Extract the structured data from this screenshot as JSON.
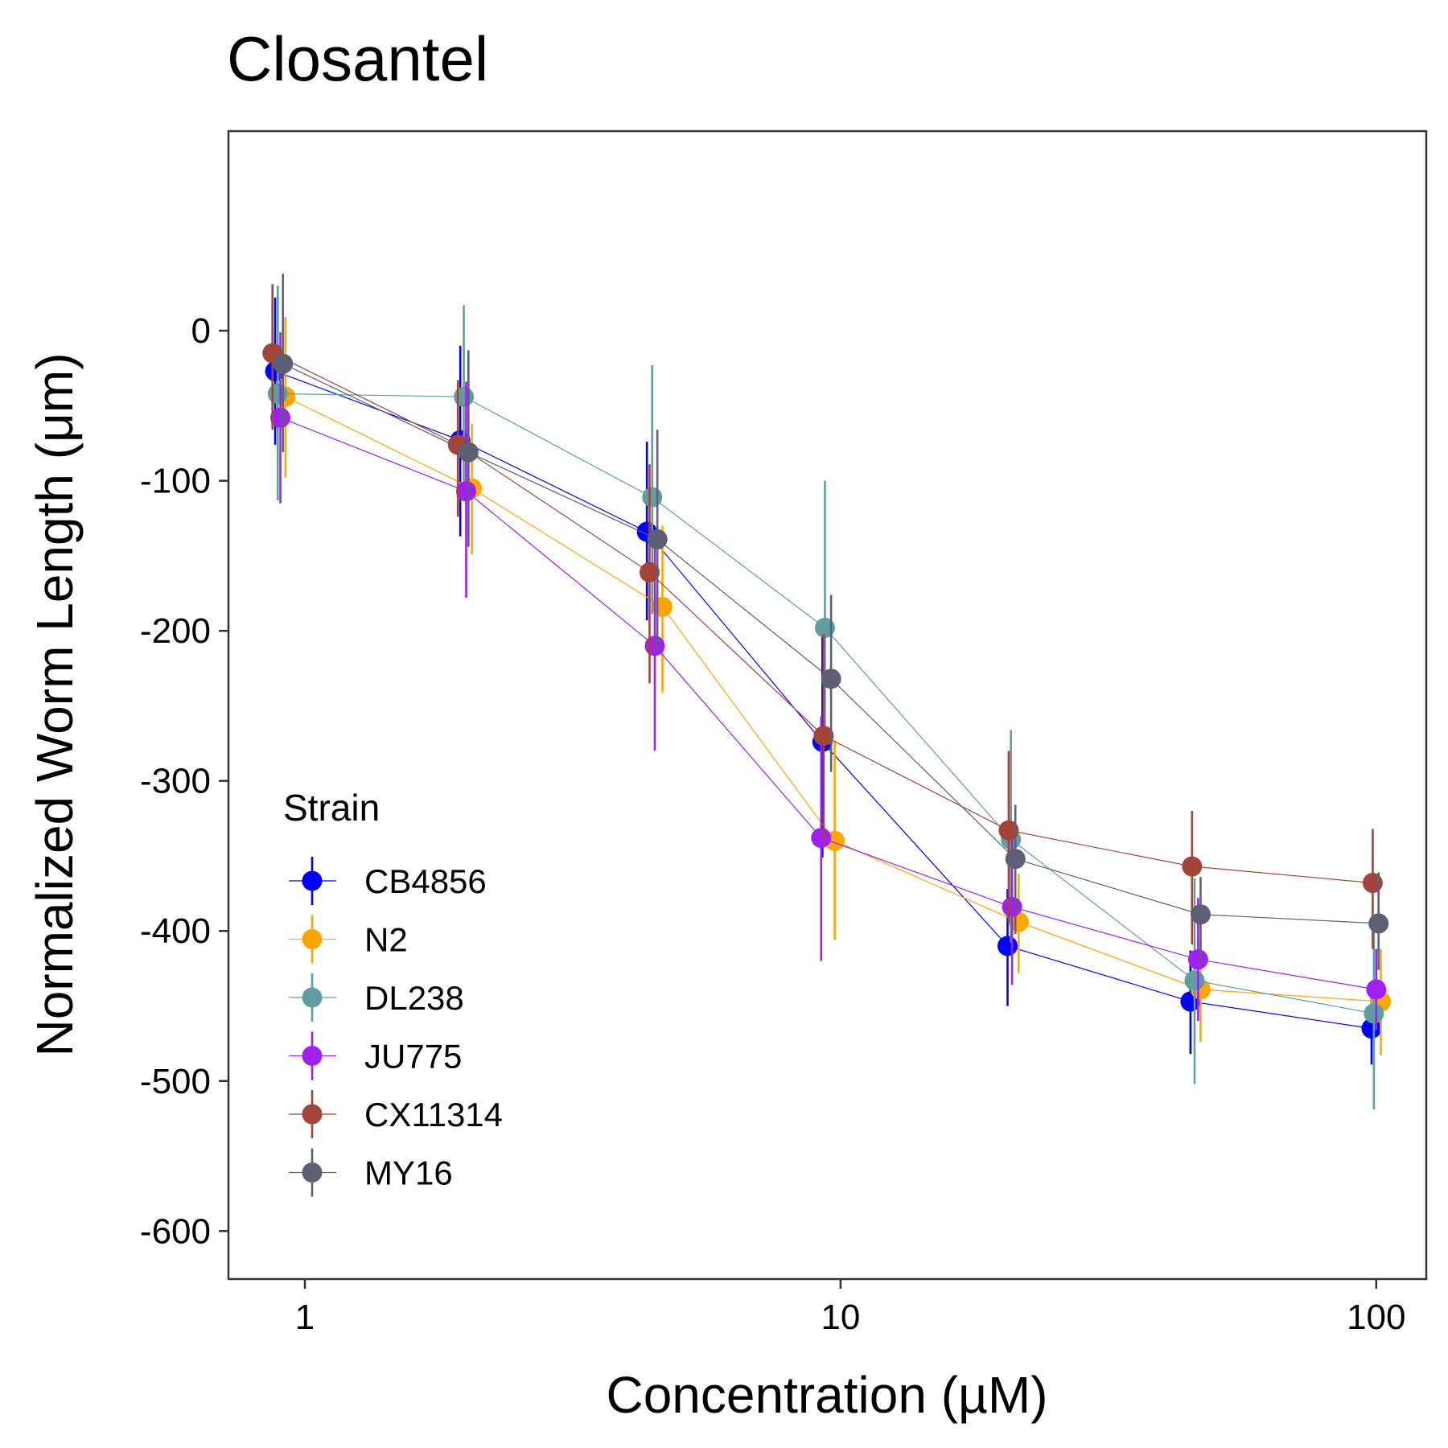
{
  "chart_data": {
    "type": "line",
    "title": "Closantel",
    "xlabel": "Concentration (µM)",
    "ylabel": "Normalized Worm Length (μm)",
    "x_scale": "log",
    "xlim": [
      0.72,
      124
    ],
    "ylim": [
      -632,
      133
    ],
    "x_ticks": [
      1,
      10,
      100
    ],
    "x_tick_labels": [
      "1",
      "10",
      "100"
    ],
    "y_ticks": [
      0,
      -100,
      -200,
      -300,
      -400,
      -500,
      -600
    ],
    "y_tick_labels": [
      "0",
      "-100",
      "-200",
      "-300",
      "-400",
      "-500",
      "-600"
    ],
    "grid": false,
    "legend": {
      "title": "Strain",
      "position": "bottom-left inside"
    },
    "x": [
      0.9,
      2,
      4.5,
      9.5,
      21,
      46,
      100
    ],
    "series": [
      {
        "name": "CB4856",
        "color": "#0000FF",
        "x": [
          0.88,
          1.95,
          4.35,
          9.25,
          20.5,
          45,
          98
        ],
        "y": [
          -27,
          -73,
          -134,
          -274,
          -410,
          -447,
          -465
        ],
        "err_low": [
          -76,
          -137,
          -193,
          -351,
          -450,
          -482,
          -489
        ],
        "err_high": [
          22,
          -10,
          -74,
          -204,
          -372,
          -413,
          -443
        ]
      },
      {
        "name": "N2",
        "color": "#FFA500",
        "x": [
          0.92,
          2.05,
          4.65,
          9.75,
          21.5,
          47,
          102
        ],
        "y": [
          -44,
          -105,
          -184,
          -340,
          -394,
          -439,
          -447
        ],
        "err_low": [
          -98,
          -149,
          -241,
          -406,
          -428,
          -474,
          -483
        ],
        "err_high": [
          9,
          -62,
          -130,
          -273,
          -362,
          -404,
          -412
        ]
      },
      {
        "name": "DL238",
        "color": "#5F9EA0",
        "x": [
          0.89,
          1.98,
          4.45,
          9.35,
          20.8,
          45.8,
          99
        ],
        "y": [
          -42,
          -44,
          -111,
          -198,
          -339,
          -433,
          -455
        ],
        "err_low": [
          -113,
          -104,
          -189,
          -275,
          -408,
          -502,
          -519
        ],
        "err_high": [
          30,
          17,
          -23,
          -100,
          -266,
          -365,
          -392
        ]
      },
      {
        "name": "JU775",
        "color": "#A020F0",
        "x": [
          0.9,
          2.0,
          4.5,
          9.2,
          20.9,
          46.5,
          100
        ],
        "y": [
          -58,
          -107,
          -210,
          -338,
          -384,
          -419,
          -439
        ],
        "err_low": [
          -115,
          -178,
          -280,
          -420,
          -436,
          -460,
          -466
        ],
        "err_high": [
          -1,
          -34,
          -142,
          -257,
          -334,
          -378,
          -412
        ]
      },
      {
        "name": "CX11314",
        "color": "#A4433A",
        "x": [
          0.87,
          1.93,
          4.4,
          9.3,
          20.6,
          45.3,
          98.5
        ],
        "y": [
          -15,
          -76,
          -161,
          -270,
          -333,
          -357,
          -368
        ],
        "err_low": [
          -66,
          -124,
          -235,
          -339,
          -395,
          -409,
          -412
        ],
        "err_high": [
          31,
          -33,
          -89,
          -202,
          -280,
          -320,
          -332
        ]
      },
      {
        "name": "MY16",
        "color": "#5D5F75",
        "x": [
          0.91,
          2.02,
          4.55,
          9.6,
          21.2,
          47,
          101
        ],
        "y": [
          -22,
          -81,
          -139,
          -232,
          -352,
          -389,
          -395
        ],
        "err_low": [
          -81,
          -144,
          -213,
          -294,
          -402,
          -421,
          -426
        ],
        "err_high": [
          38,
          -13,
          -66,
          -176,
          -316,
          -364,
          -361
        ]
      }
    ]
  }
}
